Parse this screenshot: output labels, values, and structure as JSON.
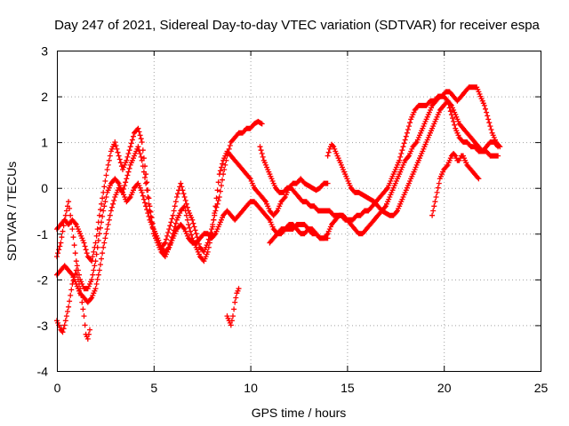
{
  "chart_data": {
    "type": "scatter",
    "title": "Day 247 of 2021, Sidereal Day-to-day VTEC variation (SDTVAR) for receiver espa",
    "xlabel": "GPS time / hours",
    "ylabel": "SDTVAR / TECUs",
    "xlim": [
      0,
      25
    ],
    "ylim": [
      -4,
      3
    ],
    "x_ticks": [
      "0",
      "5",
      "10",
      "15",
      "20",
      "25"
    ],
    "y_ticks": [
      "-4",
      "-3",
      "-2",
      "-1",
      "0",
      "1",
      "2",
      "3"
    ],
    "grid": true,
    "marker": "plus",
    "color": "#ff0000",
    "series": [
      {
        "x": [
          0.0,
          0.2,
          0.4,
          0.6,
          0.8,
          1.0,
          1.2,
          1.4,
          1.6,
          1.8,
          2.0,
          2.2,
          2.4,
          2.6,
          2.8,
          3.0,
          3.2,
          3.4,
          3.6,
          3.8,
          4.0,
          4.2,
          4.4,
          4.6,
          4.8,
          5.0,
          5.2,
          5.4,
          5.6,
          5.8,
          6.0,
          6.2,
          6.4,
          6.6,
          6.8,
          7.0,
          7.2,
          7.4,
          7.6,
          7.8,
          8.0,
          8.2,
          8.4,
          8.6,
          8.8,
          9.0,
          9.2,
          9.4,
          9.6,
          9.8,
          10.0,
          10.2,
          10.4,
          10.6
        ],
        "y": [
          -0.9,
          -0.8,
          -0.7,
          -0.8,
          -0.7,
          -0.8,
          -1.0,
          -1.2,
          -1.5,
          -1.6,
          -1.2,
          -0.6,
          -0.1,
          0.4,
          0.8,
          1.0,
          0.7,
          0.4,
          0.6,
          0.9,
          1.2,
          1.3,
          1.0,
          0.3,
          -0.4,
          -0.9,
          -1.1,
          -1.3,
          -1.2,
          -0.9,
          -0.6,
          -0.2,
          0.1,
          -0.2,
          -0.5,
          -0.7,
          -1.0,
          -1.3,
          -1.4,
          -1.2,
          -0.9,
          -0.5,
          -0.2,
          0.3,
          0.7,
          1.0,
          1.1,
          1.2,
          1.2,
          1.3,
          1.3,
          1.4,
          1.45,
          1.4
        ]
      },
      {
        "x": [
          0.0,
          0.2,
          0.4,
          0.6,
          0.8,
          1.0,
          1.2,
          1.4,
          1.6,
          1.8,
          2.0,
          2.2,
          2.4,
          2.6,
          2.8,
          3.0,
          3.2,
          3.4,
          3.6,
          3.8,
          4.0,
          4.2,
          4.4,
          4.6,
          4.8,
          5.0,
          5.2,
          5.4,
          5.6,
          5.8,
          6.0,
          6.2,
          6.4,
          6.6,
          6.8,
          7.0,
          7.2,
          7.4,
          7.6,
          7.8,
          8.0,
          8.2,
          8.4,
          8.6,
          8.8,
          9.0,
          9.2,
          9.4,
          9.6,
          9.8,
          10.0,
          10.2,
          10.4,
          10.6,
          10.8,
          11.0,
          11.2,
          11.4,
          11.6,
          11.8,
          12.0,
          12.2,
          12.4,
          12.6,
          12.8,
          13.0,
          13.2,
          13.4,
          13.6,
          13.8,
          14.0
        ],
        "y": [
          -1.5,
          -1.2,
          -0.7,
          -0.3,
          -0.9,
          -1.6,
          -2.0,
          -2.2,
          -2.2,
          -2.0,
          -1.6,
          -1.0,
          -0.5,
          -0.1,
          0.1,
          0.2,
          0.1,
          -0.1,
          0.2,
          0.5,
          0.7,
          0.9,
          0.6,
          0.1,
          -0.5,
          -1.0,
          -1.2,
          -1.4,
          -1.5,
          -1.3,
          -1.0,
          -0.7,
          -0.5,
          -0.4,
          -0.8,
          -1.1,
          -1.3,
          -1.5,
          -1.6,
          -1.4,
          -1.0,
          -0.4,
          0.3,
          0.6,
          0.8,
          0.7,
          0.6,
          0.5,
          0.4,
          0.3,
          0.2,
          0.0,
          -0.1,
          -0.2,
          -0.3,
          -0.5,
          -0.6,
          -0.5,
          -0.3,
          -0.2,
          0.0,
          0.1,
          0.1,
          0.2,
          0.1,
          0.05,
          0.0,
          -0.05,
          0.0,
          0.1,
          0.1
        ]
      },
      {
        "x": [
          0.0,
          0.2,
          0.4,
          0.6,
          0.8,
          1.0,
          1.2,
          1.4,
          1.6,
          1.8,
          2.0,
          2.2,
          2.4,
          2.6,
          2.8,
          3.0,
          3.2,
          3.4,
          3.6,
          3.8,
          4.0,
          4.2,
          4.4,
          4.6,
          4.8,
          5.0,
          5.2,
          5.4,
          5.6,
          5.8,
          6.0,
          6.2,
          6.4,
          6.6,
          6.8,
          7.0,
          7.2,
          7.4,
          7.6,
          7.8,
          8.0,
          8.2,
          8.4,
          8.6,
          8.8,
          9.0,
          9.2,
          9.4,
          9.6,
          9.8,
          10.0,
          10.2,
          10.4,
          10.6,
          10.8,
          11.0,
          11.2,
          11.4,
          11.6,
          11.8,
          12.0,
          12.2,
          12.4,
          12.6,
          12.8,
          13.0,
          13.2,
          13.4,
          13.6,
          13.8,
          14.0
        ],
        "y": [
          -1.9,
          -1.8,
          -1.7,
          -1.8,
          -1.9,
          -2.1,
          -2.3,
          -2.4,
          -2.5,
          -2.4,
          -2.2,
          -1.8,
          -1.3,
          -0.9,
          -0.5,
          -0.2,
          0.0,
          -0.1,
          -0.3,
          -0.2,
          0.0,
          0.1,
          -0.1,
          -0.4,
          -0.7,
          -0.9,
          -1.1,
          -1.3,
          -1.4,
          -1.3,
          -1.1,
          -0.9,
          -0.8,
          -0.9,
          -1.1,
          -1.2,
          -1.2,
          -1.1,
          -1.0,
          -1.0,
          -1.1,
          -1.0,
          -0.8,
          -0.6,
          -0.5,
          -0.6,
          -0.7,
          -0.6,
          -0.5,
          -0.4,
          -0.3,
          -0.3,
          -0.4,
          -0.5,
          -0.6,
          -0.7,
          -0.9,
          -1.0,
          -1.0,
          -0.9,
          -0.8,
          -0.8,
          -0.9,
          -1.0,
          -1.0,
          -0.9,
          -0.9,
          -1.0,
          -1.1,
          -1.1,
          -1.1
        ]
      },
      {
        "x": [
          0.0,
          0.1,
          0.2,
          0.3,
          0.4,
          0.6,
          0.8,
          1.0,
          1.2,
          1.4,
          1.5,
          1.6,
          1.7
        ],
        "y": [
          -2.9,
          -3.0,
          -3.1,
          -3.15,
          -3.0,
          -2.6,
          -2.1,
          -1.8,
          -2.2,
          -2.8,
          -3.2,
          -3.3,
          -3.1
        ]
      },
      {
        "x": [
          8.8,
          8.9,
          9.0,
          9.1,
          9.2,
          9.3,
          9.4
        ],
        "y": [
          -2.8,
          -2.9,
          -3.0,
          -2.8,
          -2.5,
          -2.3,
          -2.2
        ]
      },
      {
        "x": [
          10.5,
          10.7,
          10.9,
          11.1,
          11.3,
          11.5,
          11.7,
          11.9,
          12.1,
          12.3,
          12.5,
          12.7,
          12.9,
          13.1,
          13.3,
          13.5,
          13.7,
          13.9,
          14.1,
          14.3,
          14.5,
          14.7,
          14.9,
          15.1,
          15.3,
          15.5,
          15.7,
          15.9,
          16.1,
          16.3,
          16.5,
          16.7,
          16.9,
          17.1,
          17.3,
          17.5,
          17.7,
          17.9,
          18.1,
          18.3,
          18.5,
          18.7,
          18.9,
          19.1,
          19.3,
          19.5,
          19.7,
          19.9,
          20.1,
          20.3,
          20.5,
          20.7,
          20.9,
          21.1,
          21.3,
          21.5,
          21.7,
          21.9,
          22.1,
          22.3,
          22.5,
          22.7,
          22.9
        ],
        "y": [
          0.9,
          0.6,
          0.4,
          0.2,
          0.0,
          -0.1,
          -0.1,
          0.0,
          0.0,
          -0.1,
          -0.2,
          -0.3,
          -0.3,
          -0.4,
          -0.4,
          -0.5,
          -0.5,
          -0.5,
          -0.5,
          -0.6,
          -0.6,
          -0.6,
          -0.7,
          -0.7,
          -0.7,
          -0.6,
          -0.6,
          -0.5,
          -0.5,
          -0.4,
          -0.3,
          -0.2,
          -0.1,
          0.0,
          0.2,
          0.4,
          0.6,
          0.9,
          1.2,
          1.5,
          1.7,
          1.8,
          1.8,
          1.8,
          1.9,
          1.9,
          2.0,
          2.0,
          2.1,
          2.1,
          2.0,
          1.9,
          2.0,
          2.1,
          2.2,
          2.2,
          2.2,
          2.0,
          1.8,
          1.5,
          1.2,
          1.0,
          0.9
        ]
      },
      {
        "x": [
          11.0,
          11.2,
          11.4,
          11.6,
          11.8,
          12.0,
          12.2,
          12.4,
          12.6,
          12.8,
          13.0,
          13.2,
          13.4,
          13.6,
          13.8,
          14.0,
          14.2,
          14.4,
          14.6,
          14.8,
          15.0,
          15.2,
          15.4,
          15.6,
          15.8,
          16.0,
          16.2,
          16.4,
          16.6,
          16.8,
          17.0,
          17.2,
          17.4,
          17.6,
          17.8,
          18.0,
          18.2,
          18.4,
          18.6,
          18.8,
          19.0,
          19.2,
          19.4,
          19.6,
          19.8,
          20.0,
          20.2,
          20.4,
          20.6,
          20.8,
          21.0,
          21.2,
          21.4,
          21.6,
          21.8,
          22.0,
          22.2,
          22.4,
          22.6,
          22.8
        ],
        "y": [
          -1.2,
          -1.1,
          -1.0,
          -0.9,
          -0.9,
          -0.9,
          -0.9,
          -0.8,
          -0.8,
          -0.8,
          -0.9,
          -1.0,
          -1.0,
          -1.1,
          -1.1,
          -1.0,
          -0.8,
          -0.7,
          -0.6,
          -0.6,
          -0.7,
          -0.8,
          -0.9,
          -1.0,
          -1.0,
          -0.9,
          -0.8,
          -0.7,
          -0.6,
          -0.5,
          -0.4,
          -0.2,
          0.0,
          0.2,
          0.4,
          0.6,
          0.7,
          0.9,
          1.0,
          1.2,
          1.4,
          1.6,
          1.8,
          1.9,
          2.0,
          2.0,
          1.9,
          1.6,
          1.3,
          1.1,
          1.0,
          1.0,
          0.9,
          0.9,
          0.8,
          0.8,
          0.9,
          1.0,
          1.0,
          0.9
        ]
      },
      {
        "x": [
          14.0,
          14.1,
          14.2,
          14.3,
          14.4,
          14.5,
          14.6,
          14.7,
          14.8,
          14.9,
          15.0,
          15.2,
          15.4,
          15.6,
          15.8,
          16.0,
          16.2,
          16.4,
          16.6,
          16.8,
          17.0,
          17.2,
          17.4,
          17.6,
          17.8,
          18.0,
          18.2,
          18.4,
          18.6,
          18.8,
          19.0,
          19.2,
          19.4,
          19.6,
          19.8,
          20.0,
          20.2,
          20.4,
          20.6,
          20.8,
          21.0,
          21.2,
          21.4,
          21.6,
          21.8,
          22.0,
          22.2,
          22.4,
          22.6,
          22.8
        ],
        "y": [
          0.7,
          0.85,
          0.95,
          0.9,
          0.8,
          0.7,
          0.6,
          0.5,
          0.4,
          0.3,
          0.2,
          0.0,
          -0.1,
          -0.1,
          -0.15,
          -0.2,
          -0.25,
          -0.3,
          -0.4,
          -0.5,
          -0.55,
          -0.6,
          -0.6,
          -0.5,
          -0.3,
          -0.1,
          0.1,
          0.3,
          0.5,
          0.7,
          0.9,
          1.1,
          1.3,
          1.5,
          1.7,
          1.8,
          1.9,
          1.8,
          1.6,
          1.4,
          1.3,
          1.2,
          1.1,
          1.0,
          0.9,
          0.8,
          0.8,
          0.7,
          0.7,
          0.7
        ]
      },
      {
        "x": [
          19.4,
          19.5,
          19.6,
          19.7,
          19.8,
          19.9,
          20.0,
          20.1,
          20.2,
          20.3,
          20.4,
          20.5,
          20.6,
          20.7,
          20.8,
          20.9,
          21.0,
          21.1,
          21.2,
          21.3,
          21.4,
          21.5,
          21.6,
          21.7,
          21.8
        ],
        "y": [
          -0.6,
          -0.4,
          -0.2,
          0.0,
          0.2,
          0.3,
          0.4,
          0.45,
          0.5,
          0.6,
          0.7,
          0.75,
          0.7,
          0.6,
          0.6,
          0.7,
          0.7,
          0.6,
          0.5,
          0.45,
          0.4,
          0.35,
          0.3,
          0.25,
          0.2
        ]
      }
    ]
  }
}
